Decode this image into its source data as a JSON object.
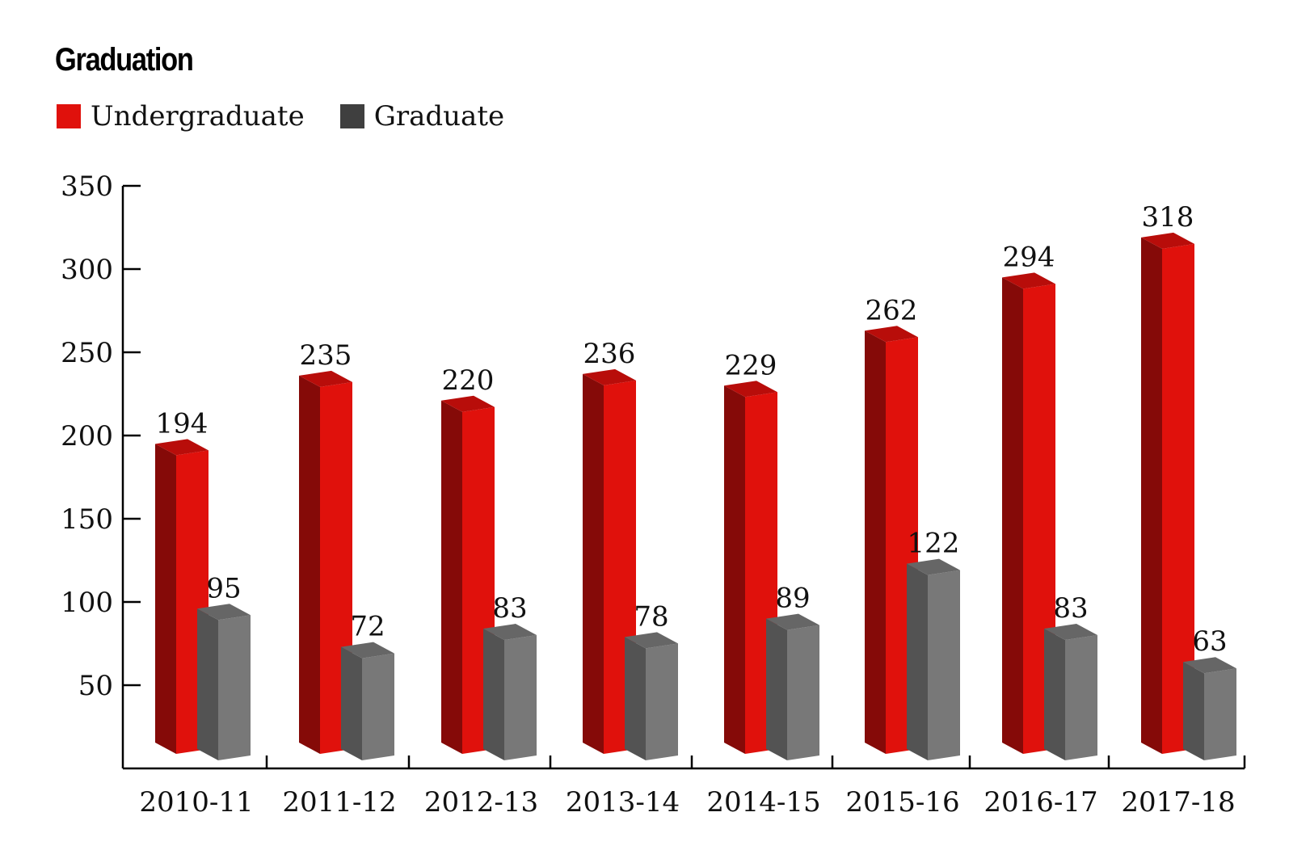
{
  "chart_data": {
    "type": "bar",
    "title": "Graduation",
    "categories": [
      "2010-11",
      "2011-12",
      "2012-13",
      "2013-14",
      "2014-15",
      "2015-16",
      "2016-17",
      "2017-18"
    ],
    "series": [
      {
        "name": "Undergraduate",
        "values": [
          194,
          235,
          220,
          236,
          229,
          262,
          294,
          318
        ],
        "color": "#e0110c"
      },
      {
        "name": "Graduate",
        "values": [
          95,
          72,
          83,
          78,
          89,
          122,
          83,
          63
        ],
        "color": "#3f3f3f"
      }
    ],
    "yticks": [
      50,
      100,
      150,
      200,
      250,
      300,
      350
    ],
    "ylim": [
      0,
      350
    ],
    "legend": "top-left",
    "grid": false,
    "style": "3d-columns"
  }
}
